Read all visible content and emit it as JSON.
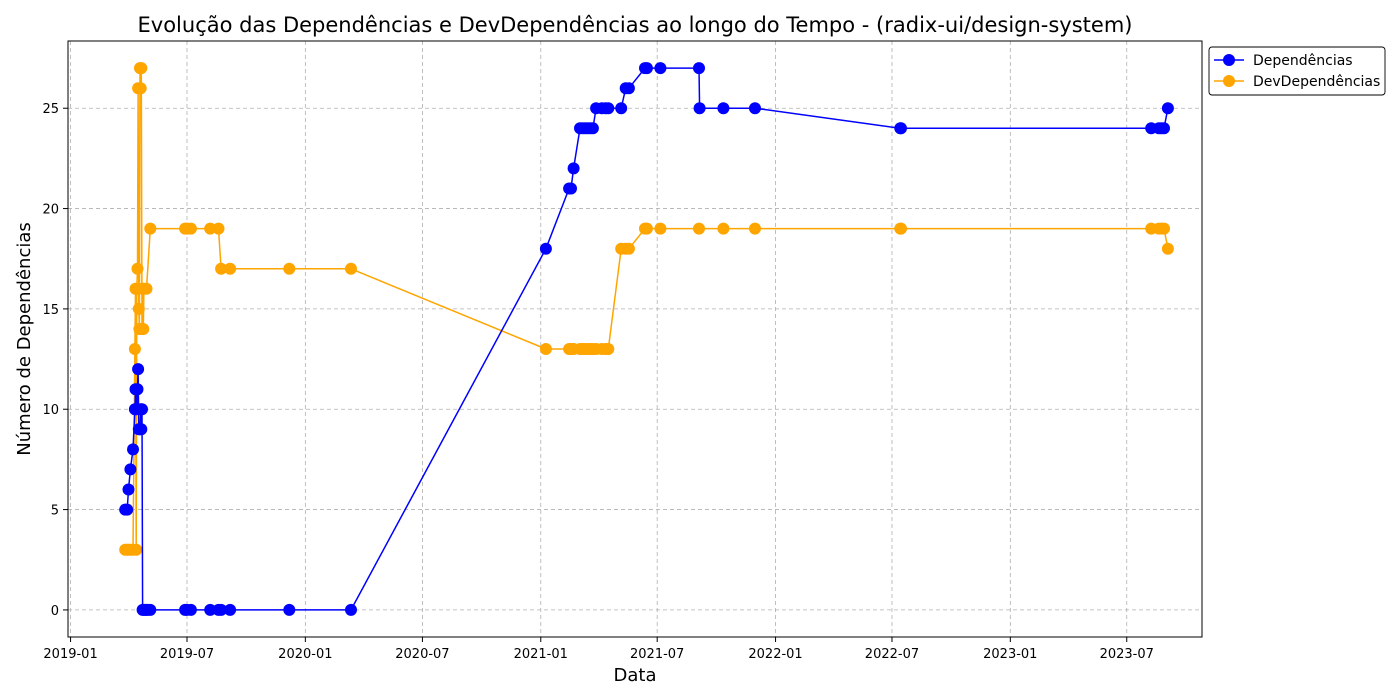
{
  "chart_data": {
    "type": "line",
    "title": "Evolução das Dependências e DevDependências ao longo do Tempo - (radix-ui/design-system)",
    "xlabel": "Data",
    "ylabel": "Número de Dependências",
    "x_ticks": [
      "2019-01",
      "2019-07",
      "2020-01",
      "2020-07",
      "2021-01",
      "2021-07",
      "2022-01",
      "2022-07",
      "2023-01",
      "2023-07"
    ],
    "y_ticks": [
      0,
      5,
      10,
      15,
      20,
      25
    ],
    "xlim": [
      "2018-12-28",
      "2023-10-26"
    ],
    "ylim": [
      -1.35,
      28.35
    ],
    "grid": true,
    "legend_position": "top-right",
    "series": [
      {
        "name": "Dependências",
        "color": "#0000ff",
        "points": [
          [
            "2019-03-27",
            5
          ],
          [
            "2019-03-30",
            5
          ],
          [
            "2019-04-01",
            6
          ],
          [
            "2019-04-04",
            7
          ],
          [
            "2019-04-08",
            8
          ],
          [
            "2019-04-11",
            10
          ],
          [
            "2019-04-12",
            11
          ],
          [
            "2019-04-14",
            10
          ],
          [
            "2019-04-15",
            11
          ],
          [
            "2019-04-16",
            12
          ],
          [
            "2019-04-17",
            9
          ],
          [
            "2019-04-19",
            9
          ],
          [
            "2019-04-20",
            10
          ],
          [
            "2019-04-21",
            9
          ],
          [
            "2019-04-22",
            10
          ],
          [
            "2019-04-23",
            0
          ],
          [
            "2019-04-25",
            0
          ],
          [
            "2019-04-27",
            0
          ],
          [
            "2019-04-29",
            0
          ],
          [
            "2019-05-01",
            0
          ],
          [
            "2019-05-05",
            0
          ],
          [
            "2019-06-28",
            0
          ],
          [
            "2019-07-01",
            0
          ],
          [
            "2019-07-07",
            0
          ],
          [
            "2019-08-06",
            0
          ],
          [
            "2019-08-19",
            0
          ],
          [
            "2019-08-23",
            0
          ],
          [
            "2019-09-06",
            0
          ],
          [
            "2019-12-07",
            0
          ],
          [
            "2020-03-12",
            0
          ],
          [
            "2021-01-09",
            18
          ],
          [
            "2021-02-14",
            21
          ],
          [
            "2021-02-17",
            21
          ],
          [
            "2021-02-21",
            22
          ],
          [
            "2021-03-03",
            24
          ],
          [
            "2021-03-07",
            24
          ],
          [
            "2021-03-11",
            24
          ],
          [
            "2021-03-15",
            24
          ],
          [
            "2021-03-19",
            24
          ],
          [
            "2021-03-23",
            24
          ],
          [
            "2021-03-28",
            25
          ],
          [
            "2021-04-06",
            25
          ],
          [
            "2021-04-12",
            25
          ],
          [
            "2021-04-16",
            25
          ],
          [
            "2021-05-06",
            25
          ],
          [
            "2021-05-13",
            26
          ],
          [
            "2021-05-18",
            26
          ],
          [
            "2021-06-12",
            27
          ],
          [
            "2021-06-15",
            27
          ],
          [
            "2021-07-06",
            27
          ],
          [
            "2021-09-04",
            27
          ],
          [
            "2021-09-05",
            25
          ],
          [
            "2021-10-12",
            25
          ],
          [
            "2021-11-30",
            25
          ],
          [
            "2022-07-14",
            24
          ],
          [
            "2022-07-15",
            24
          ],
          [
            "2023-08-08",
            24
          ],
          [
            "2023-08-20",
            24
          ],
          [
            "2023-08-24",
            24
          ],
          [
            "2023-08-28",
            24
          ],
          [
            "2023-09-03",
            25
          ]
        ]
      },
      {
        "name": "DevDependências",
        "color": "#ffa500",
        "points": [
          [
            "2019-03-27",
            3
          ],
          [
            "2019-03-30",
            3
          ],
          [
            "2019-04-01",
            3
          ],
          [
            "2019-04-04",
            3
          ],
          [
            "2019-04-08",
            3
          ],
          [
            "2019-04-11",
            13
          ],
          [
            "2019-04-12",
            16
          ],
          [
            "2019-04-13",
            3
          ],
          [
            "2019-04-14",
            16
          ],
          [
            "2019-04-15",
            17
          ],
          [
            "2019-04-16",
            26
          ],
          [
            "2019-04-17",
            15
          ],
          [
            "2019-04-18",
            14
          ],
          [
            "2019-04-19",
            27
          ],
          [
            "2019-04-20",
            26
          ],
          [
            "2019-04-21",
            27
          ],
          [
            "2019-04-22",
            14
          ],
          [
            "2019-04-23",
            16
          ],
          [
            "2019-04-24",
            14
          ],
          [
            "2019-04-25",
            16
          ],
          [
            "2019-04-29",
            16
          ],
          [
            "2019-05-05",
            19
          ],
          [
            "2019-06-28",
            19
          ],
          [
            "2019-07-01",
            19
          ],
          [
            "2019-07-07",
            19
          ],
          [
            "2019-08-06",
            19
          ],
          [
            "2019-08-19",
            19
          ],
          [
            "2019-08-23",
            17
          ],
          [
            "2019-09-06",
            17
          ],
          [
            "2019-12-07",
            17
          ],
          [
            "2020-03-12",
            17
          ],
          [
            "2021-01-09",
            13
          ],
          [
            "2021-02-14",
            13
          ],
          [
            "2021-02-17",
            13
          ],
          [
            "2021-02-21",
            13
          ],
          [
            "2021-03-03",
            13
          ],
          [
            "2021-03-07",
            13
          ],
          [
            "2021-03-11",
            13
          ],
          [
            "2021-03-15",
            13
          ],
          [
            "2021-03-19",
            13
          ],
          [
            "2021-03-23",
            13
          ],
          [
            "2021-03-28",
            13
          ],
          [
            "2021-04-06",
            13
          ],
          [
            "2021-04-12",
            13
          ],
          [
            "2021-04-16",
            13
          ],
          [
            "2021-05-06",
            18
          ],
          [
            "2021-05-13",
            18
          ],
          [
            "2021-05-18",
            18
          ],
          [
            "2021-06-12",
            19
          ],
          [
            "2021-06-15",
            19
          ],
          [
            "2021-07-06",
            19
          ],
          [
            "2021-09-04",
            19
          ],
          [
            "2021-10-12",
            19
          ],
          [
            "2021-11-30",
            19
          ],
          [
            "2022-07-14",
            19
          ],
          [
            "2022-07-15",
            19
          ],
          [
            "2023-08-08",
            19
          ],
          [
            "2023-08-20",
            19
          ],
          [
            "2023-08-24",
            19
          ],
          [
            "2023-08-28",
            19
          ],
          [
            "2023-09-03",
            18
          ]
        ]
      }
    ]
  }
}
